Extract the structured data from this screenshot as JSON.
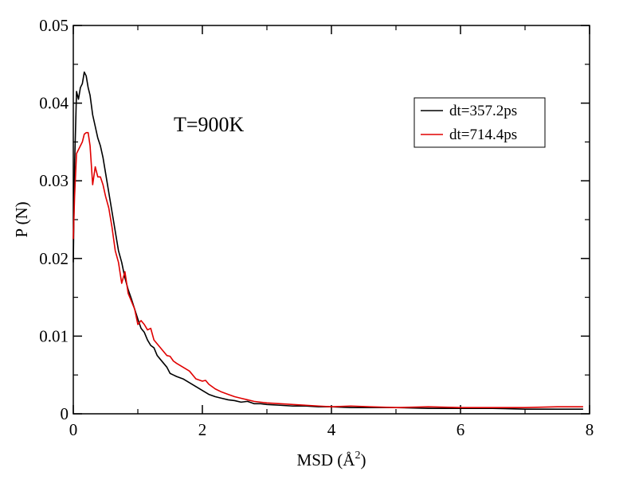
{
  "chart_data": {
    "type": "line",
    "xlabel": "MSD (Å",
    "xlabel_sup": "2",
    "xlabel_close": ")",
    "ylabel": "P (N)",
    "xlim": [
      0,
      8
    ],
    "ylim": [
      0,
      0.05
    ],
    "x_ticks": [
      "0",
      "2",
      "4",
      "6",
      "8"
    ],
    "y_ticks": [
      "0",
      "0.01",
      "0.02",
      "0.03",
      "0.04",
      "0.05"
    ],
    "annotation": "T=900K",
    "legend_placement": "top-right",
    "grid": false,
    "series": [
      {
        "name": "dt=357.2ps",
        "color": "#000000",
        "x": [
          0,
          0.02,
          0.05,
          0.08,
          0.11,
          0.14,
          0.17,
          0.2,
          0.23,
          0.26,
          0.3,
          0.34,
          0.38,
          0.42,
          0.46,
          0.5,
          0.55,
          0.6,
          0.65,
          0.7,
          0.75,
          0.8,
          0.85,
          0.9,
          0.95,
          1.0,
          1.05,
          1.1,
          1.15,
          1.2,
          1.25,
          1.3,
          1.35,
          1.4,
          1.45,
          1.5,
          1.55,
          1.6,
          1.7,
          1.8,
          1.9,
          2.0,
          2.1,
          2.2,
          2.3,
          2.4,
          2.5,
          2.6,
          2.7,
          2.8,
          2.9,
          3.0,
          3.2,
          3.4,
          3.6,
          3.8,
          4.0,
          4.3,
          4.6,
          5.0,
          5.5,
          6.0,
          6.5,
          7.0,
          7.5,
          7.9
        ],
        "y": [
          0.0195,
          0.032,
          0.0415,
          0.0405,
          0.042,
          0.0425,
          0.044,
          0.0435,
          0.042,
          0.041,
          0.0385,
          0.037,
          0.0355,
          0.0345,
          0.033,
          0.031,
          0.0285,
          0.026,
          0.0235,
          0.021,
          0.0195,
          0.0175,
          0.016,
          0.0148,
          0.0135,
          0.0122,
          0.011,
          0.0105,
          0.0095,
          0.0088,
          0.0085,
          0.0075,
          0.007,
          0.0065,
          0.006,
          0.0052,
          0.005,
          0.0048,
          0.0045,
          0.004,
          0.0035,
          0.003,
          0.0025,
          0.0022,
          0.002,
          0.0018,
          0.0017,
          0.0015,
          0.0016,
          0.0013,
          0.0013,
          0.0012,
          0.0011,
          0.001,
          0.001,
          0.0009,
          0.0009,
          0.0008,
          0.0008,
          0.0008,
          0.0007,
          0.0007,
          0.0007,
          0.0006,
          0.0006,
          0.0006
        ]
      },
      {
        "name": "dt=714.4ps",
        "color": "#e00000",
        "x": [
          0,
          0.02,
          0.05,
          0.08,
          0.11,
          0.14,
          0.17,
          0.2,
          0.23,
          0.26,
          0.3,
          0.34,
          0.38,
          0.42,
          0.46,
          0.5,
          0.55,
          0.6,
          0.65,
          0.7,
          0.75,
          0.8,
          0.85,
          0.9,
          0.95,
          1.0,
          1.05,
          1.1,
          1.15,
          1.2,
          1.25,
          1.3,
          1.35,
          1.4,
          1.45,
          1.5,
          1.55,
          1.6,
          1.7,
          1.8,
          1.9,
          2.0,
          2.05,
          2.1,
          2.2,
          2.3,
          2.4,
          2.5,
          2.6,
          2.7,
          2.8,
          2.9,
          3.0,
          3.2,
          3.4,
          3.6,
          3.8,
          4.0,
          4.3,
          4.6,
          5.0,
          5.5,
          6.0,
          6.5,
          7.0,
          7.5,
          7.9
        ],
        "y": [
          0.0225,
          0.028,
          0.0335,
          0.034,
          0.0345,
          0.035,
          0.036,
          0.0362,
          0.0362,
          0.0345,
          0.0295,
          0.0318,
          0.0305,
          0.0305,
          0.0295,
          0.028,
          0.0265,
          0.024,
          0.021,
          0.0195,
          0.0168,
          0.0183,
          0.0155,
          0.0145,
          0.0135,
          0.0115,
          0.012,
          0.0115,
          0.0108,
          0.011,
          0.0095,
          0.009,
          0.0085,
          0.008,
          0.0075,
          0.0074,
          0.0068,
          0.0065,
          0.006,
          0.0055,
          0.0045,
          0.0042,
          0.0043,
          0.0038,
          0.0032,
          0.0028,
          0.0025,
          0.0022,
          0.002,
          0.0018,
          0.0016,
          0.0015,
          0.0014,
          0.0013,
          0.0012,
          0.0011,
          0.001,
          0.0009,
          0.001,
          0.0009,
          0.0008,
          0.0009,
          0.0008,
          0.0008,
          0.0008,
          0.0009,
          0.0009
        ]
      }
    ]
  }
}
